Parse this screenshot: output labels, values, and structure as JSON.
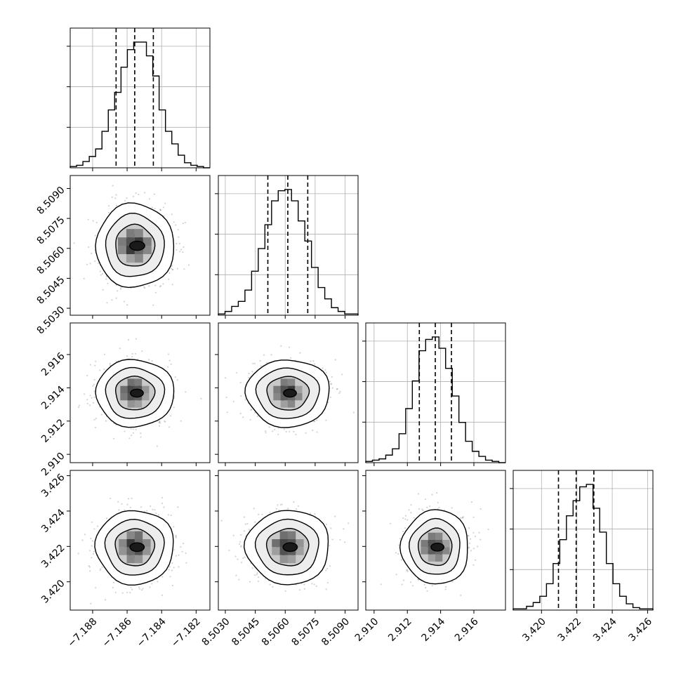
{
  "chart_data": {
    "type": "corner",
    "parameters": [
      {
        "id": "p0",
        "range": [
          -7.1893,
          -7.1812
        ],
        "ticks": [
          -7.188,
          -7.186,
          -7.184,
          -7.182
        ],
        "tick_labels": [
          "−7.188",
          "−7.186",
          "−7.184",
          "−7.182"
        ],
        "quantiles": [
          -7.18664,
          -7.18556,
          -7.18448
        ],
        "hist_counts": [
          0.01,
          0.02,
          0.05,
          0.09,
          0.15,
          0.29,
          0.46,
          0.6,
          0.8,
          0.94,
          1.0,
          1.0,
          0.89,
          0.73,
          0.46,
          0.29,
          0.19,
          0.1,
          0.04,
          0.02,
          0.01,
          0.0
        ]
      },
      {
        "id": "p1",
        "range": [
          8.50265,
          8.50965
        ],
        "ticks": [
          8.503,
          8.5045,
          8.506,
          8.5075,
          8.509
        ],
        "tick_labels": [
          "8.5030",
          "8.5045",
          "8.5060",
          "8.5075",
          "8.5090"
        ],
        "quantiles": [
          8.50513,
          8.50613,
          8.50713
        ],
        "hist_counts": [
          0.01,
          0.03,
          0.07,
          0.11,
          0.2,
          0.35,
          0.53,
          0.72,
          0.91,
          0.99,
          1.0,
          0.91,
          0.75,
          0.59,
          0.38,
          0.22,
          0.13,
          0.06,
          0.03,
          0.01,
          0.01
        ]
      },
      {
        "id": "p2",
        "range": [
          2.9095,
          2.9179
        ],
        "ticks": [
          2.91,
          2.912,
          2.914,
          2.916
        ],
        "tick_labels": [
          "2.910",
          "2.912",
          "2.914",
          "2.916"
        ],
        "quantiles": [
          2.91272,
          2.91368,
          2.91465
        ],
        "hist_counts": [
          0.01,
          0.02,
          0.03,
          0.06,
          0.11,
          0.23,
          0.43,
          0.65,
          0.89,
          0.98,
          1.0,
          0.91,
          0.75,
          0.53,
          0.32,
          0.17,
          0.09,
          0.05,
          0.02,
          0.01,
          0.0
        ]
      },
      {
        "id": "p3",
        "range": [
          3.4184,
          3.4263
        ],
        "ticks": [
          3.42,
          3.422,
          3.424,
          3.426
        ],
        "tick_labels": [
          "3.420",
          "3.422",
          "3.424",
          "3.426"
        ],
        "quantiles": [
          3.42096,
          3.42196,
          3.42296
        ],
        "hist_counts": [
          0.01,
          0.01,
          0.03,
          0.06,
          0.11,
          0.21,
          0.37,
          0.56,
          0.75,
          0.87,
          0.98,
          1.0,
          0.81,
          0.62,
          0.37,
          0.21,
          0.11,
          0.05,
          0.02,
          0.01,
          0.01
        ]
      }
    ],
    "grid": true,
    "quantile_levels": [
      0.16,
      0.5,
      0.84
    ]
  },
  "colors": {
    "hist_line": "#000000",
    "quantile_line": "#000000",
    "grid": "#b0b0b0",
    "scatter_points": "#808080",
    "frame": "#000000"
  }
}
